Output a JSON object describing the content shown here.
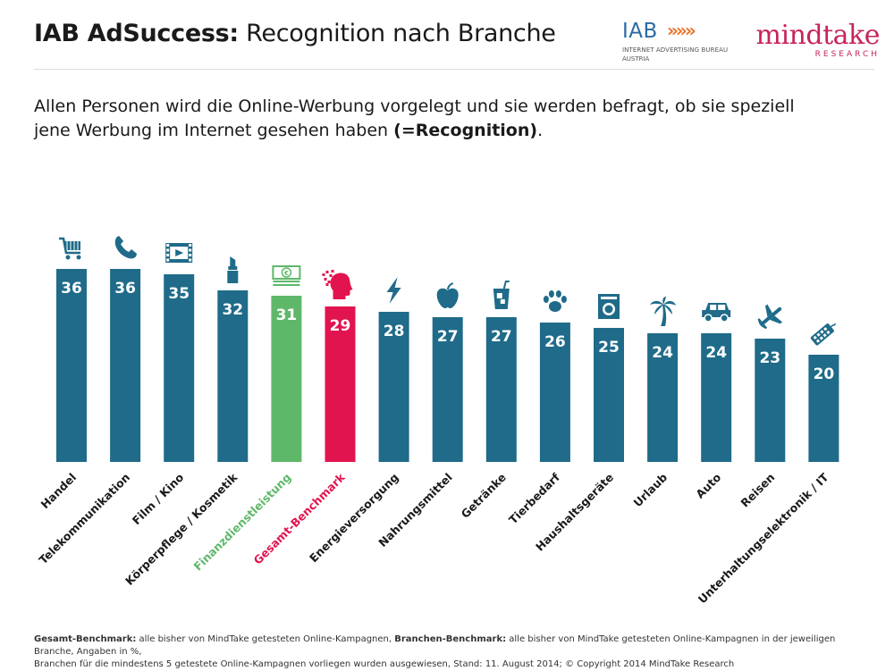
{
  "header": {
    "title_bold": "IAB AdSuccess:",
    "title_regular": "Recognition nach Branche"
  },
  "logos": {
    "iab": {
      "name": "IAB",
      "arrows": "»»»",
      "sub_line1": "INTERNET ADVERTISING BUREAU",
      "sub_line2": "AUSTRIA"
    },
    "mindtake": {
      "name": "mindtake",
      "sub": "RESEARCH"
    }
  },
  "description": {
    "line1": "Allen Personen wird die Online-Werbung vorgelegt und sie werden befragt, ob sie speziell",
    "line2_start": "jene Werbung im Internet gesehen haben ",
    "line2_bold": "(=Recognition)",
    "line2_end": "."
  },
  "colors": {
    "bar_default": "#1f6b89",
    "bar_finance": "#5fb86a",
    "bar_benchmark": "#e2144f",
    "label_default": "#1a1a1a",
    "value_text": "#ffffff"
  },
  "chart_data": {
    "type": "bar",
    "title": "",
    "xlabel": "",
    "ylabel": "",
    "ylim": [
      0,
      40
    ],
    "grid": false,
    "legend": "none",
    "categories": [
      "Handel",
      "Telekommunikation",
      "Film / Kino",
      "Körperpflege / Kosmetik",
      "Finanzdienstleistung",
      "Gesamt-Benchmark",
      "Energieversorgung",
      "Nahrungsmittel",
      "Getränke",
      "Tierbedarf",
      "Haushaltsgeräte",
      "Urlaub",
      "Auto",
      "Reisen",
      "Unterhaltungselektronik / IT"
    ],
    "values": [
      36,
      36,
      35,
      32,
      31,
      29,
      28,
      27,
      27,
      26,
      25,
      24,
      24,
      23,
      20
    ],
    "highlight": {
      "Finanzdienstleistung": "#5fb86a",
      "Gesamt-Benchmark": "#e2144f"
    },
    "icons": [
      "shopping-cart-icon",
      "phone-icon",
      "film-icon",
      "lipstick-icon",
      "money-icon",
      "head-icon",
      "lightning-icon",
      "apple-icon",
      "drink-icon",
      "paw-icon",
      "washing-machine-icon",
      "palm-tree-icon",
      "car-icon",
      "airplane-icon",
      "remote-control-icon"
    ]
  },
  "footnote": {
    "b1": "Gesamt-Benchmark:",
    "t1": " alle bisher von MindTake getesteten Online-Kampagnen, ",
    "b2": "Branchen-Benchmark:",
    "t2": " alle bisher von MindTake getesteten Online-Kampagnen in der jeweiligen Branche, Angaben in %,",
    "t3": "Branchen für die mindestens 5 getestete Online-Kampagnen vorliegen wurden ausgewiesen, Stand: 11. August 2014; © Copyright 2014 MindTake Research"
  }
}
